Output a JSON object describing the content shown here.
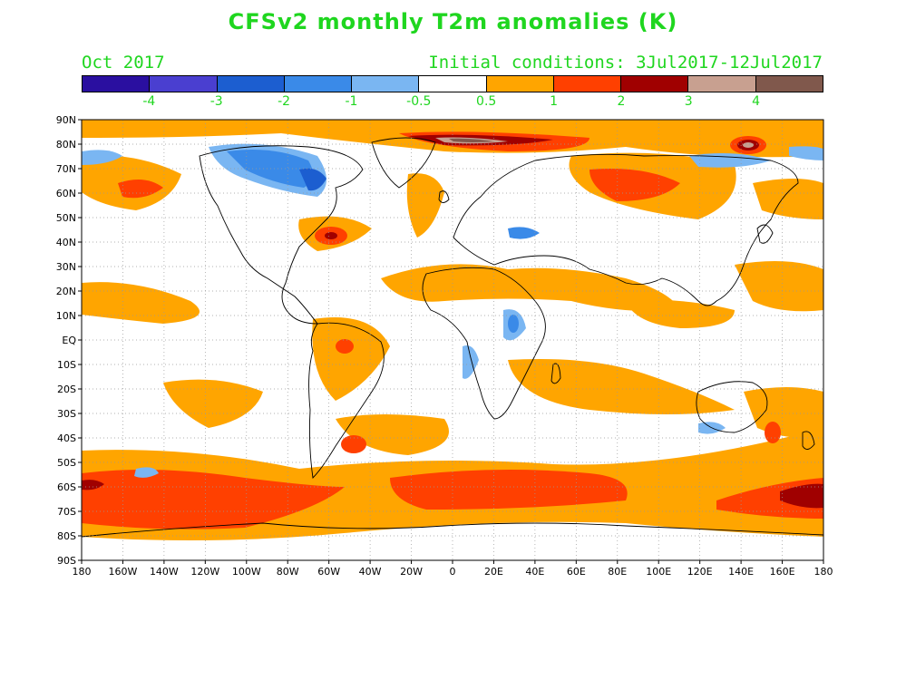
{
  "title": "CFSv2 monthly T2m anomalies (K)",
  "period": "Oct 2017",
  "initial_conditions": "Initial conditions: 3Jul2017-12Jul2017",
  "colorbar": {
    "colors": [
      "#2a0fa0",
      "#4a3fd0",
      "#1c5ed0",
      "#3a8ae8",
      "#7ab6f2",
      "#ffffff",
      "#ffa500",
      "#ff4000",
      "#a00000",
      "#c8a090",
      "#80584c"
    ],
    "labels": [
      "-4",
      "-3",
      "-2",
      "-1",
      "-0.5",
      "0.5",
      "1",
      "2",
      "3",
      "4"
    ]
  },
  "map": {
    "lat_labels": [
      "90N",
      "80N",
      "70N",
      "60N",
      "50N",
      "40N",
      "30N",
      "20N",
      "10N",
      "EQ",
      "10S",
      "20S",
      "30S",
      "40S",
      "50S",
      "60S",
      "70S",
      "80S",
      "90S"
    ],
    "lon_labels": [
      "180",
      "160W",
      "140W",
      "120W",
      "100W",
      "80W",
      "60W",
      "40W",
      "20W",
      "0",
      "20E",
      "40E",
      "60E",
      "80E",
      "100E",
      "120E",
      "140E",
      "160E",
      "180"
    ]
  }
}
